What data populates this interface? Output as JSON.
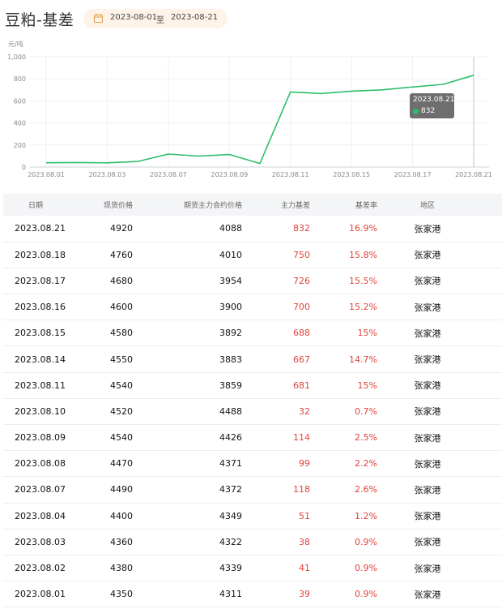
{
  "page": {
    "title": "豆粕-基差",
    "date_from": "2023-08-01",
    "date_separator": "至",
    "date_to": "2023-08-21"
  },
  "chart_data": {
    "type": "line",
    "unit_label": "元/吨",
    "x": [
      "2023.08.01",
      "2023.08.02",
      "2023.08.03",
      "2023.08.04",
      "2023.08.07",
      "2023.08.08",
      "2023.08.09",
      "2023.08.10",
      "2023.08.11",
      "2023.08.14",
      "2023.08.15",
      "2023.08.16",
      "2023.08.17",
      "2023.08.18",
      "2023.08.21"
    ],
    "x_tick_labels": [
      "2023.08.01",
      "2023.08.03",
      "2023.08.07",
      "2023.08.09",
      "2023.08.11",
      "2023.08.15",
      "2023.08.17",
      "2023.08.21"
    ],
    "series": [
      {
        "values": [
          39,
          41,
          38,
          51,
          118,
          99,
          114,
          32,
          681,
          667,
          688,
          700,
          726,
          750,
          832
        ],
        "color": "#2ebd6b"
      }
    ],
    "y_ticks": [
      "0",
      "200",
      "400",
      "600",
      "800",
      "1,000"
    ],
    "ylim": [
      0,
      1000
    ],
    "grid": true,
    "tooltip": {
      "date": "2023.08.21",
      "value": "832"
    }
  },
  "table": {
    "headers": [
      "日期",
      "现货价格",
      "期货主力合约价格",
      "主力基差",
      "基差率",
      "地区"
    ],
    "rows": [
      [
        "2023.08.21",
        "4920",
        "4088",
        "832",
        "16.9%",
        "张家港"
      ],
      [
        "2023.08.18",
        "4760",
        "4010",
        "750",
        "15.8%",
        "张家港"
      ],
      [
        "2023.08.17",
        "4680",
        "3954",
        "726",
        "15.5%",
        "张家港"
      ],
      [
        "2023.08.16",
        "4600",
        "3900",
        "700",
        "15.2%",
        "张家港"
      ],
      [
        "2023.08.15",
        "4580",
        "3892",
        "688",
        "15%",
        "张家港"
      ],
      [
        "2023.08.14",
        "4550",
        "3883",
        "667",
        "14.7%",
        "张家港"
      ],
      [
        "2023.08.11",
        "4540",
        "3859",
        "681",
        "15%",
        "张家港"
      ],
      [
        "2023.08.10",
        "4520",
        "4488",
        "32",
        "0.7%",
        "张家港"
      ],
      [
        "2023.08.09",
        "4540",
        "4426",
        "114",
        "2.5%",
        "张家港"
      ],
      [
        "2023.08.08",
        "4470",
        "4371",
        "99",
        "2.2%",
        "张家港"
      ],
      [
        "2023.08.07",
        "4490",
        "4372",
        "118",
        "2.6%",
        "张家港"
      ],
      [
        "2023.08.04",
        "4400",
        "4349",
        "51",
        "1.2%",
        "张家港"
      ],
      [
        "2023.08.03",
        "4360",
        "4322",
        "38",
        "0.9%",
        "张家港"
      ],
      [
        "2023.08.02",
        "4380",
        "4339",
        "41",
        "0.9%",
        "张家港"
      ],
      [
        "2023.08.01",
        "4350",
        "4311",
        "39",
        "0.9%",
        "张家港"
      ]
    ]
  }
}
